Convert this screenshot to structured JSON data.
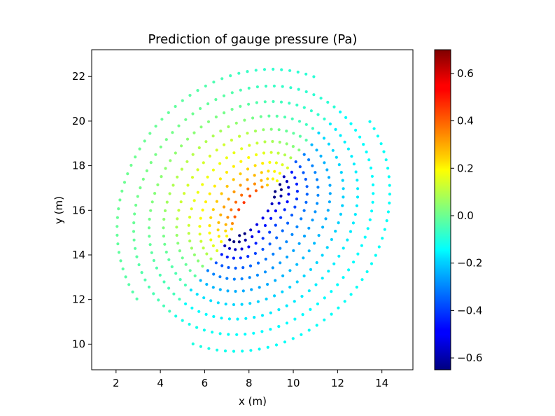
{
  "chart_data": {
    "type": "scatter",
    "title": "Prediction of gauge pressure (Pa)",
    "xlabel": "x (m)",
    "ylabel": "y (m)",
    "xlim": [
      0.9,
      15.4
    ],
    "ylim": [
      8.85,
      23.2
    ],
    "xticks": [
      2,
      4,
      6,
      8,
      10,
      12,
      14
    ],
    "yticks": [
      10,
      12,
      14,
      16,
      18,
      20,
      22
    ],
    "grid": false,
    "colormap": "jet",
    "colorbar": {
      "vmin": -0.65,
      "vmax": 0.7,
      "ticks": [
        -0.6,
        -0.4,
        -0.2,
        0.0,
        0.2,
        0.4,
        0.6
      ],
      "tick_labels": [
        "−0.6",
        "−0.4",
        "−0.2",
        "0.0",
        "0.2",
        "0.4",
        "0.6"
      ]
    },
    "field": {
      "center": [
        8.2,
        16.0
      ],
      "plate_from": [
        7.3,
        14.9
      ],
      "plate_to": [
        9.1,
        17.1
      ],
      "ring_radii_near": [
        0.25,
        0.55,
        0.9,
        1.3,
        1.75,
        2.25,
        2.8,
        3.4,
        4.05,
        4.75,
        5.5,
        6.3
      ],
      "ring_radii_far": [
        0.4,
        0.9,
        1.45,
        2.05,
        2.7,
        3.4,
        4.15,
        4.95,
        5.75,
        6.55
      ]
    }
  }
}
